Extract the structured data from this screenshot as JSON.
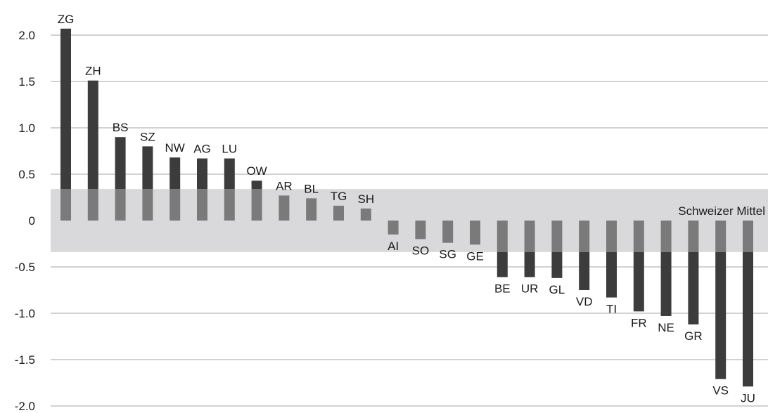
{
  "chart_data": {
    "type": "bar",
    "title": "",
    "xlabel": "",
    "ylabel": "",
    "ylim": [
      -2.0,
      2.0
    ],
    "yticks": [
      "2.0",
      "1.5",
      "1.0",
      "0.5",
      "0",
      "-0.5",
      "-1.0",
      "-1.5",
      "-2.0"
    ],
    "grid": true,
    "categories": [
      "ZG",
      "ZH",
      "BS",
      "SZ",
      "NW",
      "AG",
      "LU",
      "OW",
      "AR",
      "BL",
      "TG",
      "SH",
      "AI",
      "SO",
      "SG",
      "GE",
      "BE",
      "UR",
      "GL",
      "VD",
      "TI",
      "FR",
      "NE",
      "GR",
      "VS",
      "JU"
    ],
    "values": [
      2.07,
      1.51,
      0.9,
      0.8,
      0.68,
      0.67,
      0.67,
      0.43,
      0.27,
      0.24,
      0.16,
      0.13,
      -0.15,
      -0.2,
      -0.24,
      -0.26,
      -0.61,
      -0.61,
      -0.62,
      -0.75,
      -0.83,
      -0.98,
      -1.03,
      -1.12,
      -1.71,
      -1.79
    ],
    "band": {
      "label": "Schweizer Mittel",
      "range": [
        -0.34,
        0.34
      ]
    },
    "colors": {
      "bar_outside_band": "#3c3c3c",
      "bar_inside_band": "#7a7a7a",
      "band": "#d9d9db",
      "grid": "#a6a6a6",
      "text": "#1a1a1a"
    }
  }
}
